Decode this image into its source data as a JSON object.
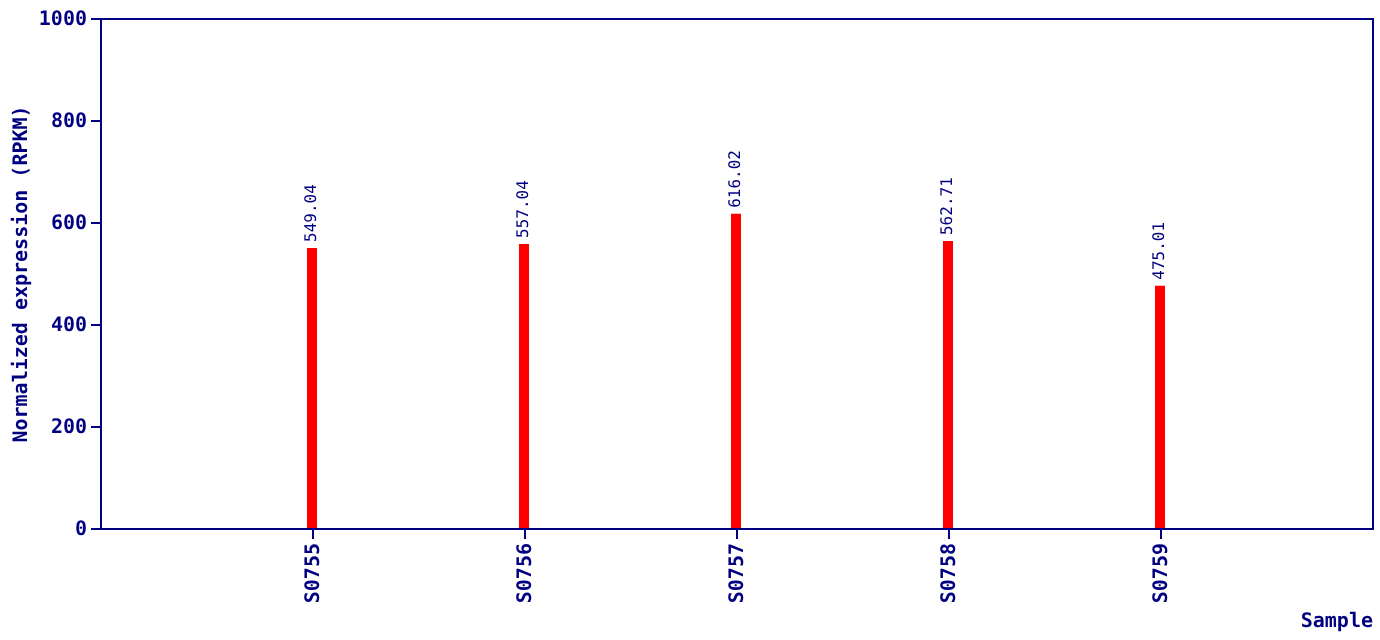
{
  "chart_data": {
    "type": "bar",
    "xlabel": "Sample",
    "ylabel": "Normalized expression (RPKM)",
    "categories": [
      "S0755",
      "S0756",
      "S0757",
      "S0758",
      "S0759"
    ],
    "values": [
      549.04,
      557.04,
      616.02,
      562.71,
      475.01
    ],
    "color": "#ff0000",
    "ylim": [
      0,
      1000
    ],
    "yticks": [
      0,
      200,
      400,
      600,
      800,
      1000
    ],
    "grid": false,
    "data_labels": true
  }
}
